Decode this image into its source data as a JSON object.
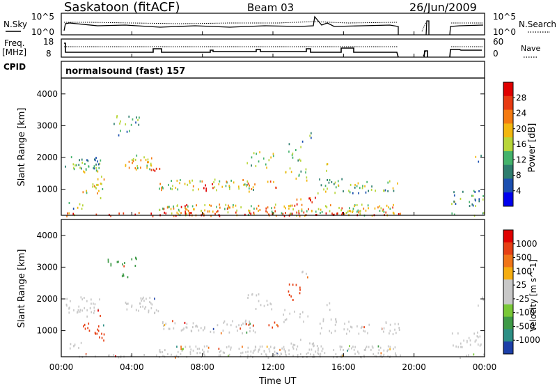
{
  "header": {
    "station": "Saskatoon (fitACF)",
    "beam": "Beam 03",
    "date": "26/Jun/2009"
  },
  "noise_panel": {
    "left_label": "N.Sky",
    "right_label": "N.Search",
    "left_ticks": [
      "10^5",
      "10^0"
    ],
    "right_ticks": [
      "10^5",
      "10^0"
    ]
  },
  "freq_panel": {
    "left_label_1": "Freq.",
    "left_label_2": "[MHz]",
    "right_label": "Nave",
    "left_ticks": [
      "18",
      "8"
    ],
    "right_ticks": [
      "60",
      "0"
    ]
  },
  "cpid_panel": {
    "label": "CPID",
    "mode_text": "normalsound (fast) 157"
  },
  "power_panel": {
    "ylabel": "Slant Range [km]",
    "yticks": [
      "4000",
      "3000",
      "2000",
      "1000"
    ],
    "colorbar_label": "Power [dB]",
    "colorbar_ticks": [
      "28",
      "24",
      "20",
      "16",
      "12",
      "8",
      "4"
    ],
    "colors": [
      "#0000ee",
      "#1b4fb0",
      "#2e7d6e",
      "#44b36b",
      "#b8d639",
      "#f2b70f",
      "#f47a10",
      "#e83a12",
      "#e00000"
    ]
  },
  "velocity_panel": {
    "ylabel": "Slant Range [km]",
    "yticks": [
      "4000",
      "3000",
      "2000",
      "1000"
    ],
    "colorbar_label": "Velocity [m s^-1]",
    "colorbar_ticks": [
      "1000",
      "500",
      "100",
      "25",
      "-25",
      "-100",
      "-500",
      "-1000"
    ],
    "colors": [
      "#1c3fa8",
      "#2d8f85",
      "#3e9a47",
      "#79c837",
      "#c8c8c8",
      "#c8c8c8",
      "#f5ad10",
      "#f07518",
      "#e64014",
      "#e00000"
    ]
  },
  "x_axis": {
    "ticks": [
      "00:00",
      "04:00",
      "08:00",
      "12:00",
      "16:00",
      "20:00",
      "00:00"
    ],
    "label": "Time UT"
  },
  "chart_data": {
    "type": "heatmap",
    "x_range_hours": [
      0,
      24
    ],
    "y_range_km": [
      180,
      4500
    ],
    "data_gap_hours": [
      19.2,
      22.0
    ],
    "power_db_range": [
      0,
      30
    ],
    "velocity_range": [
      -1000,
      1000
    ]
  }
}
